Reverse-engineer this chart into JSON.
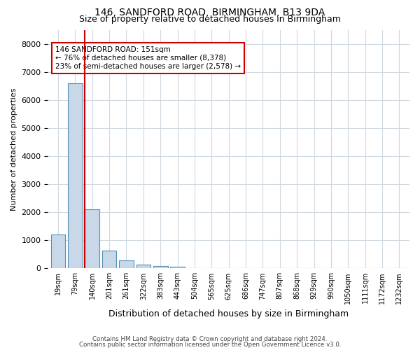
{
  "title1": "146, SANDFORD ROAD, BIRMINGHAM, B13 9DA",
  "title2": "Size of property relative to detached houses in Birmingham",
  "xlabel": "Distribution of detached houses by size in Birmingham",
  "ylabel": "Number of detached properties",
  "footnote1": "Contains HM Land Registry data © Crown copyright and database right 2024.",
  "footnote2": "Contains public sector information licensed under the Open Government Licence v3.0.",
  "bin_labels": [
    "19sqm",
    "79sqm",
    "140sqm",
    "201sqm",
    "261sqm",
    "322sqm",
    "383sqm",
    "443sqm",
    "504sqm",
    "565sqm",
    "625sqm",
    "686sqm",
    "747sqm",
    "807sqm",
    "868sqm",
    "929sqm",
    "990sqm",
    "1050sqm",
    "1111sqm",
    "1172sqm",
    "1232sqm"
  ],
  "bar_heights": [
    1200,
    6600,
    2100,
    620,
    280,
    120,
    80,
    50,
    0,
    0,
    0,
    0,
    0,
    0,
    0,
    0,
    0,
    0,
    0,
    0,
    0
  ],
  "bar_color": "#c8d8e8",
  "bar_edge_color": "#5090b8",
  "annotation_text": "146 SANDFORD ROAD: 151sqm\n← 76% of detached houses are smaller (8,378)\n23% of semi-detached houses are larger (2,578) →",
  "annotation_box_color": "#ffffff",
  "annotation_box_edge": "#cc0000",
  "line_color": "#cc0000",
  "ylim": [
    0,
    8500
  ],
  "yticks": [
    0,
    1000,
    2000,
    3000,
    4000,
    5000,
    6000,
    7000,
    8000
  ],
  "bg_color": "#ffffff",
  "grid_color": "#d0d8e0"
}
